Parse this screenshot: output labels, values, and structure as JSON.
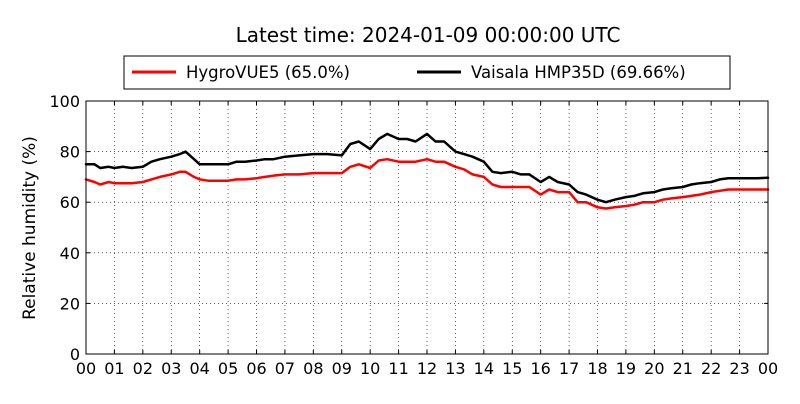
{
  "chart_data": {
    "type": "line",
    "title": "Latest time: 2024-01-09 00:00:00 UTC",
    "xlabel": "",
    "ylabel": "Relative humidity (%)",
    "xlim": [
      0,
      24
    ],
    "ylim": [
      0,
      100
    ],
    "x_tick_labels": [
      "00",
      "01",
      "02",
      "03",
      "04",
      "05",
      "06",
      "07",
      "08",
      "09",
      "10",
      "11",
      "12",
      "13",
      "14",
      "15",
      "16",
      "17",
      "18",
      "19",
      "20",
      "21",
      "22",
      "23",
      "00"
    ],
    "y_ticks": [
      0,
      20,
      40,
      60,
      80,
      100
    ],
    "grid": true,
    "legend_position": "top",
    "x_units": "hour of day (UTC)",
    "series": [
      {
        "name": "HygroVUE5 (65.0%)",
        "color": "#ff0000",
        "x": [
          0,
          0.3,
          0.5,
          0.8,
          1,
          1.3,
          1.6,
          2,
          2.3,
          2.6,
          3,
          3.3,
          3.5,
          3.8,
          4,
          4.3,
          4.6,
          5,
          5.3,
          5.6,
          6,
          6.3,
          6.6,
          7,
          7.5,
          8,
          8.5,
          9,
          9.3,
          9.6,
          10,
          10.3,
          10.6,
          11,
          11.3,
          11.6,
          12,
          12.3,
          12.6,
          13,
          13.3,
          13.6,
          14,
          14.3,
          14.6,
          15,
          15.3,
          15.6,
          16,
          16.3,
          16.6,
          17,
          17.3,
          17.6,
          18,
          18.3,
          18.6,
          19,
          19.3,
          19.6,
          20,
          20.3,
          20.6,
          21,
          21.3,
          21.6,
          22,
          22.3,
          22.6,
          23,
          23.3,
          23.6,
          24
        ],
        "values": [
          69,
          68,
          67,
          68,
          67.5,
          67.5,
          67.5,
          68,
          69,
          70,
          71,
          72,
          72,
          70,
          69,
          68.5,
          68.5,
          68.5,
          69,
          69,
          69.5,
          70,
          70.5,
          71,
          71,
          71.5,
          71.5,
          71.5,
          74,
          75,
          73.5,
          76.5,
          77,
          76,
          76,
          76,
          77,
          76,
          76,
          74,
          73,
          71,
          70,
          67,
          66,
          66,
          66,
          66,
          63,
          65,
          64,
          64,
          60,
          60,
          58,
          57.5,
          58,
          58.5,
          59,
          60,
          60,
          61,
          61.5,
          62,
          62.5,
          63,
          64,
          64.5,
          65,
          65,
          65,
          65,
          65
        ]
      },
      {
        "name": "Vaisala HMP35D (69.66%)",
        "color": "#000000",
        "x": [
          0,
          0.3,
          0.5,
          0.8,
          1,
          1.3,
          1.6,
          2,
          2.3,
          2.6,
          3,
          3.3,
          3.5,
          3.8,
          4,
          4.3,
          4.6,
          5,
          5.3,
          5.6,
          6,
          6.3,
          6.6,
          7,
          7.5,
          8,
          8.5,
          9,
          9.3,
          9.6,
          10,
          10.3,
          10.6,
          11,
          11.3,
          11.6,
          12,
          12.3,
          12.6,
          13,
          13.3,
          13.6,
          14,
          14.3,
          14.6,
          15,
          15.3,
          15.6,
          16,
          16.3,
          16.6,
          17,
          17.3,
          17.6,
          18,
          18.3,
          18.6,
          19,
          19.3,
          19.6,
          20,
          20.3,
          20.6,
          21,
          21.3,
          21.6,
          22,
          22.3,
          22.6,
          23,
          23.3,
          23.6,
          24
        ],
        "values": [
          75,
          75,
          73.5,
          74,
          73.5,
          74,
          73.5,
          74,
          76,
          77,
          78,
          79,
          80,
          77,
          75,
          75,
          75,
          75,
          76,
          76,
          76.5,
          77,
          77,
          78,
          78.5,
          79,
          79,
          78.5,
          83,
          84,
          81,
          85,
          87,
          85,
          85,
          84,
          87,
          84,
          84,
          80,
          79,
          78,
          76,
          72,
          71.5,
          72,
          71,
          71,
          68,
          70,
          68,
          67,
          64,
          63,
          61,
          60,
          61,
          62,
          62.5,
          63.5,
          64,
          65,
          65.5,
          66,
          67,
          67.5,
          68,
          69,
          69.5,
          69.5,
          69.5,
          69.5,
          69.66
        ]
      }
    ]
  }
}
